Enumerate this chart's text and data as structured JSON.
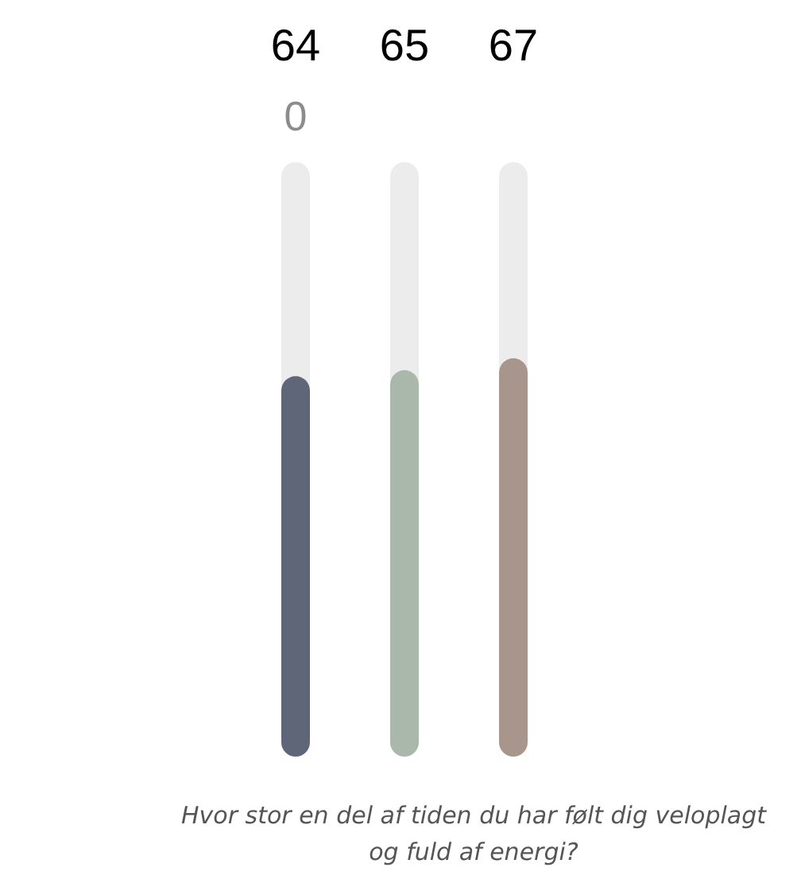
{
  "chart_data": {
    "type": "bar",
    "categories": [
      null,
      null,
      null
    ],
    "values": [
      64,
      65,
      67
    ],
    "colors": [
      "#5f6677",
      "#a9b8ab",
      "#a8958b"
    ],
    "ylim": [
      0,
      100
    ],
    "tick_labels": false,
    "data_labels": true,
    "xlabel": "Hvor stor en del af tiden du har følt dig veloplagt og fuld af energi?",
    "annotations": [
      "0"
    ]
  }
}
